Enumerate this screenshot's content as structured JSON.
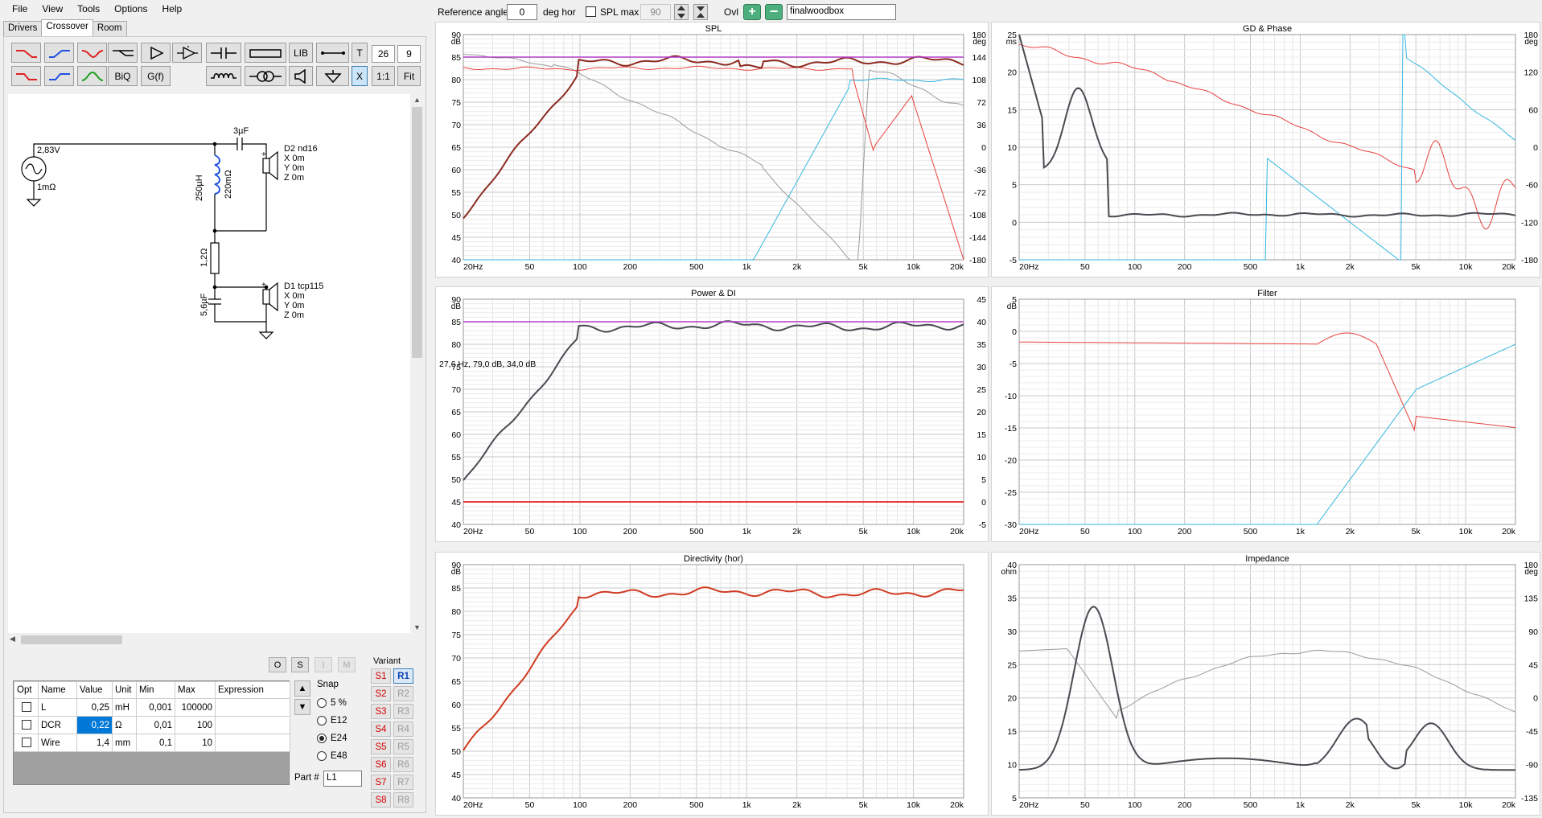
{
  "menu": [
    "File",
    "View",
    "Tools",
    "Options",
    "Help"
  ],
  "tabs": [
    "Drivers",
    "Crossover",
    "Room"
  ],
  "active_tab": "Crossover",
  "toolbar": {
    "lib_label": "LIB",
    "t_label": "T",
    "field1_value": "26",
    "field2_value": "9",
    "biq_label": "BiQ",
    "gf_label": "G(f)",
    "x_label": "X",
    "one_to_one_label": "1:1",
    "fit_label": "Fit"
  },
  "schematic": {
    "source_voltage": "2,83V",
    "source_resistance": "1mΩ",
    "c1_label": "3µF",
    "l1_label": "250µH",
    "l1_dcr_label": "220mΩ",
    "r1_label": "1,2Ω",
    "c2_label": "5,6µF",
    "d2_name": "D2 nd16",
    "d1_name": "D1 tcp115",
    "pos_x": "X 0m",
    "pos_y": "Y 0m",
    "pos_z": "Z 0m"
  },
  "parts_toolbar": {
    "o": "O",
    "s": "S",
    "i": "I",
    "m": "M"
  },
  "param_table": {
    "headers": [
      "Opt",
      "Name",
      "Value",
      "Unit",
      "Min",
      "Max",
      "Expression"
    ],
    "rows": [
      {
        "name": "L",
        "value": "0,25",
        "unit": "mH",
        "min": "0,001",
        "max": "100000",
        "expr": ""
      },
      {
        "name": "DCR",
        "value": "0,22",
        "unit": "Ω",
        "min": "0,01",
        "max": "100",
        "expr": ""
      },
      {
        "name": "Wire",
        "value": "1,4",
        "unit": "mm",
        "min": "0,1",
        "max": "10",
        "expr": ""
      }
    ]
  },
  "snap": {
    "title": "Snap",
    "options": [
      "5 %",
      "E12",
      "E24",
      "E48"
    ],
    "selected": "E24"
  },
  "part": {
    "label": "Part #",
    "value": "L1"
  },
  "variant": {
    "title": "Variant",
    "s": [
      "S1",
      "S2",
      "S3",
      "S4",
      "S5",
      "S6",
      "S7",
      "S8"
    ],
    "r": [
      "R1",
      "R2",
      "R3",
      "R4",
      "R5",
      "R6",
      "R7",
      "R8"
    ],
    "active": "R1"
  },
  "topbar": {
    "reference_angle_label": "Reference angle",
    "reference_angle_value": "0",
    "deg_hor_label": "deg hor",
    "spl_max_label": "SPL max",
    "spl_max_value": "90",
    "ovl_label": "Ovl",
    "overlay_name": "finalwoodbox"
  },
  "colors": {
    "red": "#e8413d",
    "blue": "#35b7e0",
    "dark": "#4a4a52",
    "purple": "#b43cc8",
    "gray": "#9a9a9a",
    "brown": "#8b2a20"
  },
  "freq_ticks": [
    "20Hz",
    "50",
    "100",
    "200",
    "500",
    "1k",
    "2k",
    "5k",
    "10k",
    "20k"
  ],
  "plots": {
    "spl": {
      "title": "SPL",
      "left_unit": "dB",
      "right_unit": "deg",
      "left_ticks": [
        "90",
        "85",
        "80",
        "75",
        "70",
        "65",
        "60",
        "55",
        "50",
        "45",
        "40"
      ],
      "right_ticks": [
        "180",
        "144",
        "108",
        "72",
        "36",
        "0",
        "-36",
        "-72",
        "-108",
        "-144",
        "-180"
      ],
      "annotation": ""
    },
    "gd": {
      "title": "GD & Phase",
      "left_unit": "ms",
      "right_unit": "deg",
      "left_ticks": [
        "25",
        "20",
        "15",
        "10",
        "5",
        "0",
        "-5"
      ],
      "right_ticks": [
        "180",
        "120",
        "60",
        "0",
        "-60",
        "-120",
        "-180"
      ]
    },
    "power": {
      "title": "Power & DI",
      "left_unit": "dB",
      "left_ticks": [
        "90",
        "85",
        "80",
        "75",
        "70",
        "65",
        "60",
        "55",
        "50",
        "45",
        "40"
      ],
      "right_ticks": [
        "45",
        "40",
        "35",
        "30",
        "25",
        "20",
        "15",
        "10",
        "5",
        "0",
        "-5"
      ],
      "annotation": "27,6 Hz, 79,0 dB, 34,0 dB"
    },
    "filter": {
      "title": "Filter",
      "left_unit": "dB",
      "left_ticks": [
        "5",
        "0",
        "-5",
        "-10",
        "-15",
        "-20",
        "-25",
        "-30"
      ]
    },
    "directivity": {
      "title": "Directivity (hor)",
      "left_unit": "dB",
      "left_ticks": [
        "90",
        "85",
        "80",
        "75",
        "70",
        "65",
        "60",
        "55",
        "50",
        "45",
        "40"
      ]
    },
    "impedance": {
      "title": "Impedance",
      "left_unit": "ohm",
      "right_unit": "deg",
      "left_ticks": [
        "40",
        "35",
        "30",
        "25",
        "20",
        "15",
        "10",
        "5"
      ],
      "right_ticks": [
        "180",
        "135",
        "90",
        "45",
        "0",
        "-45",
        "-90",
        "-135"
      ]
    }
  }
}
